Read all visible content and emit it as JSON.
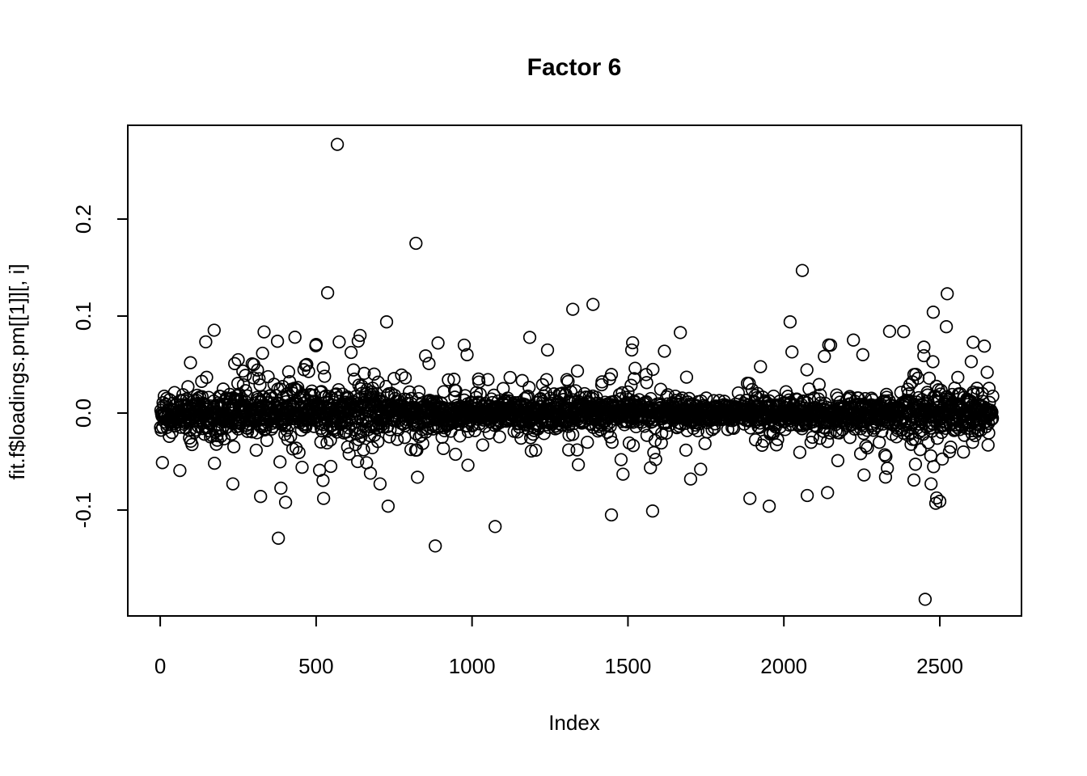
{
  "page": {
    "background": "#ffffff"
  },
  "chart_data": {
    "type": "scatter",
    "title": "Factor 6",
    "xlabel": "Index",
    "ylabel": "fit.f$loadings.pm[[1]][, i]",
    "legend": null,
    "grid": false,
    "marker": {
      "shape": "open-circle",
      "color": "#000000",
      "radius_px": 7.3,
      "stroke_width_px": 1.7
    },
    "axis_color": "#000000",
    "text_color": "#000000",
    "x_range": [
      -104,
      2762
    ],
    "y_range": [
      -0.2092,
      0.2967
    ],
    "x_ticks": [
      {
        "value": 0,
        "label": "0"
      },
      {
        "value": 500,
        "label": "500"
      },
      {
        "value": 1000,
        "label": "1000"
      },
      {
        "value": 1500,
        "label": "1500"
      },
      {
        "value": 2000,
        "label": "2000"
      },
      {
        "value": 2500,
        "label": "2500"
      }
    ],
    "y_ticks": [
      {
        "value": -0.1,
        "label": "-0.1"
      },
      {
        "value": 0.0,
        "label": "0.0"
      },
      {
        "value": 0.1,
        "label": "0.1"
      },
      {
        "value": 0.2,
        "label": "0.2"
      }
    ],
    "n_points": 2670,
    "y_center": 0.0,
    "outliers": [
      [
        233,
        -0.073
      ],
      [
        239,
        0.051
      ],
      [
        250,
        0.055
      ],
      [
        300,
        0.05
      ],
      [
        322,
        -0.086
      ],
      [
        376,
        0.074
      ],
      [
        379,
        -0.129
      ],
      [
        402,
        -0.092
      ],
      [
        511,
        -0.059
      ],
      [
        524,
        -0.088
      ],
      [
        537,
        0.124
      ],
      [
        568,
        0.277
      ],
      [
        633,
        -0.05
      ],
      [
        641,
        0.08
      ],
      [
        674,
        -0.062
      ],
      [
        705,
        -0.073
      ],
      [
        726,
        0.094
      ],
      [
        731,
        -0.096
      ],
      [
        820,
        0.175
      ],
      [
        882,
        -0.137
      ],
      [
        975,
        0.07
      ],
      [
        1074,
        -0.117
      ],
      [
        1185,
        0.078
      ],
      [
        1242,
        0.065
      ],
      [
        1323,
        0.107
      ],
      [
        1388,
        0.112
      ],
      [
        1447,
        -0.105
      ],
      [
        1478,
        -0.048
      ],
      [
        1484,
        -0.063
      ],
      [
        1512,
        0.065
      ],
      [
        1579,
        -0.101
      ],
      [
        1668,
        0.083
      ],
      [
        1701,
        -0.068
      ],
      [
        1891,
        -0.088
      ],
      [
        1953,
        -0.096
      ],
      [
        2020,
        0.094
      ],
      [
        2026,
        0.063
      ],
      [
        2059,
        0.147
      ],
      [
        2075,
        -0.085
      ],
      [
        2140,
        -0.082
      ],
      [
        2150,
        0.07
      ],
      [
        2173,
        -0.049
      ],
      [
        2326,
        -0.066
      ],
      [
        2384,
        0.084
      ],
      [
        2417,
        -0.069
      ],
      [
        2449,
        0.068
      ],
      [
        2453,
        -0.192
      ],
      [
        2472,
        -0.073
      ],
      [
        2479,
        0.104
      ],
      [
        2487,
        -0.093
      ],
      [
        2500,
        -0.091
      ],
      [
        2521,
        0.089
      ],
      [
        2524,
        0.123
      ],
      [
        2607,
        0.073
      ],
      [
        2643,
        0.069
      ]
    ],
    "noise_model": {
      "seed": 42,
      "sd_envelope": [
        [
          0,
          0.014
        ],
        [
          250,
          0.02
        ],
        [
          550,
          0.024
        ],
        [
          800,
          0.016
        ],
        [
          1050,
          0.013
        ],
        [
          1300,
          0.017
        ],
        [
          1600,
          0.012
        ],
        [
          1900,
          0.014
        ],
        [
          2150,
          0.013
        ],
        [
          2350,
          0.018
        ],
        [
          2550,
          0.02
        ],
        [
          2670,
          0.016
        ]
      ],
      "mixture": [
        [
          0.7,
          0.5
        ],
        [
          0.92,
          1.1
        ],
        [
          0.982,
          1.9
        ],
        [
          1.0,
          2.9
        ]
      ],
      "value_cap": 0.093
    }
  }
}
